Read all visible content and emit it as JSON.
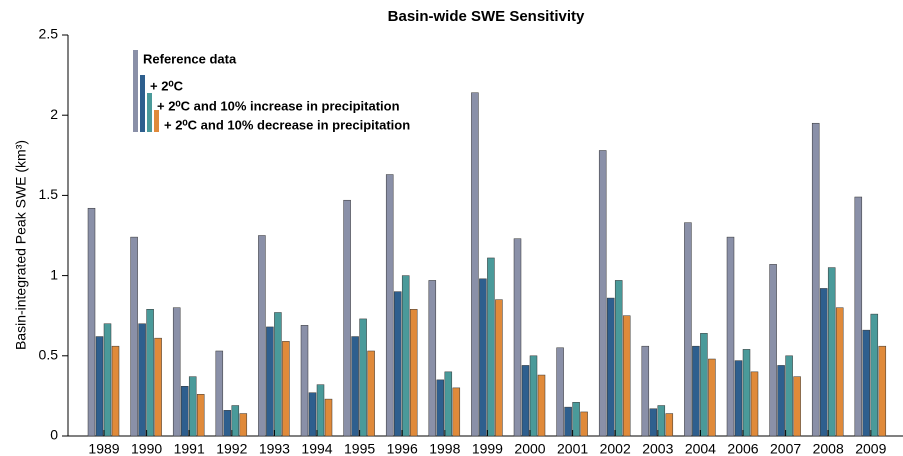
{
  "chart_data": {
    "type": "bar",
    "title": "Basin-wide SWE Sensitivity",
    "y_label": "Basin-integrated  Peak SWE (km³)",
    "categories": [
      "1989",
      "1990",
      "1991",
      "1992",
      "1993",
      "1994",
      "1995",
      "1996",
      "1998",
      "1999",
      "2000",
      "2001",
      "2002",
      "2003",
      "2004",
      "2006",
      "2007",
      "2008",
      "2009"
    ],
    "series": [
      {
        "name": "Reference data",
        "color": "#8a90a8",
        "values": [
          1.42,
          1.24,
          0.8,
          0.53,
          1.25,
          0.69,
          1.47,
          1.63,
          0.97,
          2.14,
          1.23,
          0.55,
          1.78,
          0.56,
          1.33,
          1.24,
          1.07,
          1.95,
          1.49
        ]
      },
      {
        "name": "+ 2⁰C",
        "color": "#2e5f8e",
        "values": [
          0.62,
          0.7,
          0.31,
          0.16,
          0.68,
          0.27,
          0.62,
          0.9,
          0.35,
          0.98,
          0.44,
          0.18,
          0.86,
          0.17,
          0.56,
          0.47,
          0.44,
          0.92,
          0.66
        ]
      },
      {
        "name": "+ 2⁰C and 10% increase in precipitation",
        "color": "#4a9a9a",
        "values": [
          0.7,
          0.79,
          0.37,
          0.19,
          0.77,
          0.32,
          0.73,
          1.0,
          0.4,
          1.11,
          0.5,
          0.21,
          0.97,
          0.19,
          0.64,
          0.54,
          0.5,
          1.05,
          0.76
        ]
      },
      {
        "name": "+ 2⁰C and 10% decrease in precipitation",
        "color": "#e08a3a",
        "values": [
          0.56,
          0.61,
          0.26,
          0.14,
          0.59,
          0.23,
          0.53,
          0.79,
          0.3,
          0.85,
          0.38,
          0.15,
          0.75,
          0.14,
          0.48,
          0.4,
          0.37,
          0.8,
          0.56
        ]
      }
    ],
    "ylim": [
      0,
      2.5
    ],
    "yticks": [
      0,
      0.5,
      1,
      1.5,
      2,
      2.5
    ],
    "grid": false
  }
}
